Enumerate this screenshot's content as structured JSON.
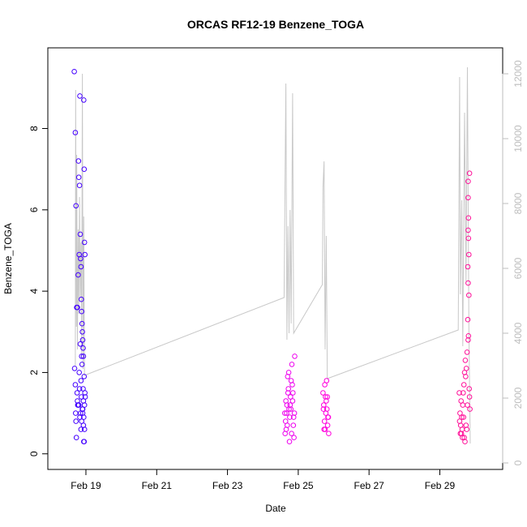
{
  "chart_data": {
    "type": "scatter",
    "title": "ORCAS RF12-19 Benzene_TOGA",
    "xlabel": "Date",
    "ylabel": "Benzene_TOGA",
    "x_ticks": [
      "Feb 19",
      "Feb 21",
      "Feb 23",
      "Feb 25",
      "Feb 27",
      "Feb 29"
    ],
    "x_tick_days": [
      19,
      21,
      23,
      25,
      27,
      29
    ],
    "xlim_days": [
      18.4,
      30.3
    ],
    "ylim": [
      0,
      9.6
    ],
    "y_ticks": [
      0,
      2,
      4,
      6,
      8
    ],
    "y2_ticks": [
      0,
      2000,
      4000,
      6000,
      8000,
      10000,
      12000
    ],
    "y2lim": [
      -200,
      12800
    ],
    "grid": false,
    "colors": {
      "flight1": "#4400ff",
      "flight2": "#ee00ee",
      "flight3": "#ff00dd",
      "flight4": "#ff1199",
      "altitude_line": "#c8c8c8",
      "right_axis": "#bdbdbd"
    },
    "series": [
      {
        "color_key": "flight1",
        "x": [
          18.67,
          18.7,
          18.72,
          18.74,
          18.76,
          18.78,
          18.79,
          18.8,
          18.81,
          18.82,
          18.83,
          18.84,
          18.85,
          18.86,
          18.87,
          18.88,
          18.89,
          18.9,
          18.91,
          18.92,
          18.93,
          18.94,
          18.95,
          18.96,
          18.97,
          18.98,
          18.68,
          18.73,
          18.77,
          18.85,
          18.88,
          18.91,
          18.93,
          18.95,
          18.7,
          18.75,
          18.8,
          18.83,
          18.86,
          18.89,
          18.92,
          18.94,
          18.96,
          18.71,
          18.76,
          18.81,
          18.84,
          18.87,
          18.9,
          18.93,
          18.95,
          18.97,
          18.72,
          18.78,
          18.82,
          18.86,
          18.88,
          18.91,
          18.94,
          18.96
        ],
        "y": [
          9.4,
          7.9,
          6.1,
          3.6,
          3.6,
          4.4,
          7.2,
          6.8,
          4.9,
          6.6,
          8.8,
          5.4,
          4.8,
          4.6,
          3.8,
          3.5,
          3.2,
          3.0,
          2.8,
          2.6,
          2.4,
          8.7,
          7.0,
          5.2,
          4.9,
          1.4,
          2.1,
          0.4,
          1.2,
          1.0,
          0.8,
          1.1,
          1.3,
          0.3,
          1.7,
          1.5,
          1.2,
          0.9,
          1.8,
          2.2,
          1.6,
          0.3,
          0.6,
          1.0,
          1.3,
          2.0,
          2.7,
          1.4,
          1.1,
          0.7,
          1.9,
          1.5,
          0.8,
          1.2,
          1.6,
          0.6,
          2.4,
          1.0,
          0.9,
          1.2
        ]
      },
      {
        "color_key": "flight2",
        "x": [
          24.62,
          24.64,
          24.66,
          24.68,
          24.7,
          24.72,
          24.74,
          24.76,
          24.78,
          24.8,
          24.82,
          24.84,
          24.86,
          24.88,
          24.9,
          24.63,
          24.67,
          24.71,
          24.75,
          24.79,
          24.83,
          24.87,
          24.65,
          24.69,
          24.73,
          24.77,
          24.81,
          24.85,
          24.89
        ],
        "y": [
          1.0,
          0.8,
          0.6,
          1.2,
          1.9,
          1.6,
          1.1,
          0.9,
          1.4,
          1.8,
          2.2,
          1.3,
          0.7,
          0.4,
          2.4,
          0.5,
          1.0,
          1.5,
          0.3,
          1.1,
          1.7,
          0.9,
          1.3,
          0.7,
          2.0,
          1.2,
          0.5,
          1.5,
          1.0
        ]
      },
      {
        "color_key": "flight3",
        "x": [
          25.7,
          25.72,
          25.74,
          25.76,
          25.78,
          25.8,
          25.82,
          25.84,
          25.86,
          25.71,
          25.75,
          25.79,
          25.83,
          25.73,
          25.77,
          25.81,
          25.85
        ],
        "y": [
          1.5,
          1.2,
          0.8,
          0.6,
          1.0,
          1.8,
          1.4,
          0.9,
          0.5,
          1.1,
          1.7,
          1.3,
          0.7,
          0.6,
          1.4,
          1.1,
          0.9
        ]
      },
      {
        "color_key": "flight4",
        "x": [
          29.55,
          29.57,
          29.59,
          29.61,
          29.63,
          29.65,
          29.67,
          29.69,
          29.71,
          29.73,
          29.75,
          29.77,
          29.79,
          29.81,
          29.83,
          29.85,
          29.56,
          29.6,
          29.64,
          29.68,
          29.72,
          29.76,
          29.8,
          29.84,
          29.58,
          29.62,
          29.66,
          29.7,
          29.74,
          29.78,
          29.82,
          29.84,
          29.8,
          29.8,
          29.81,
          29.8,
          29.81,
          29.82,
          29.79,
          29.8
        ],
        "y": [
          1.5,
          1.0,
          0.7,
          0.5,
          0.6,
          1.2,
          0.9,
          0.4,
          0.3,
          1.9,
          2.1,
          2.5,
          3.3,
          2.9,
          1.6,
          1.1,
          0.8,
          1.3,
          0.4,
          1.7,
          2.3,
          0.6,
          2.8,
          1.4,
          0.5,
          0.9,
          1.5,
          2.0,
          0.7,
          1.2,
          3.9,
          6.9,
          6.7,
          6.3,
          5.8,
          5.5,
          5.3,
          4.9,
          4.6,
          4.2
        ]
      }
    ]
  }
}
